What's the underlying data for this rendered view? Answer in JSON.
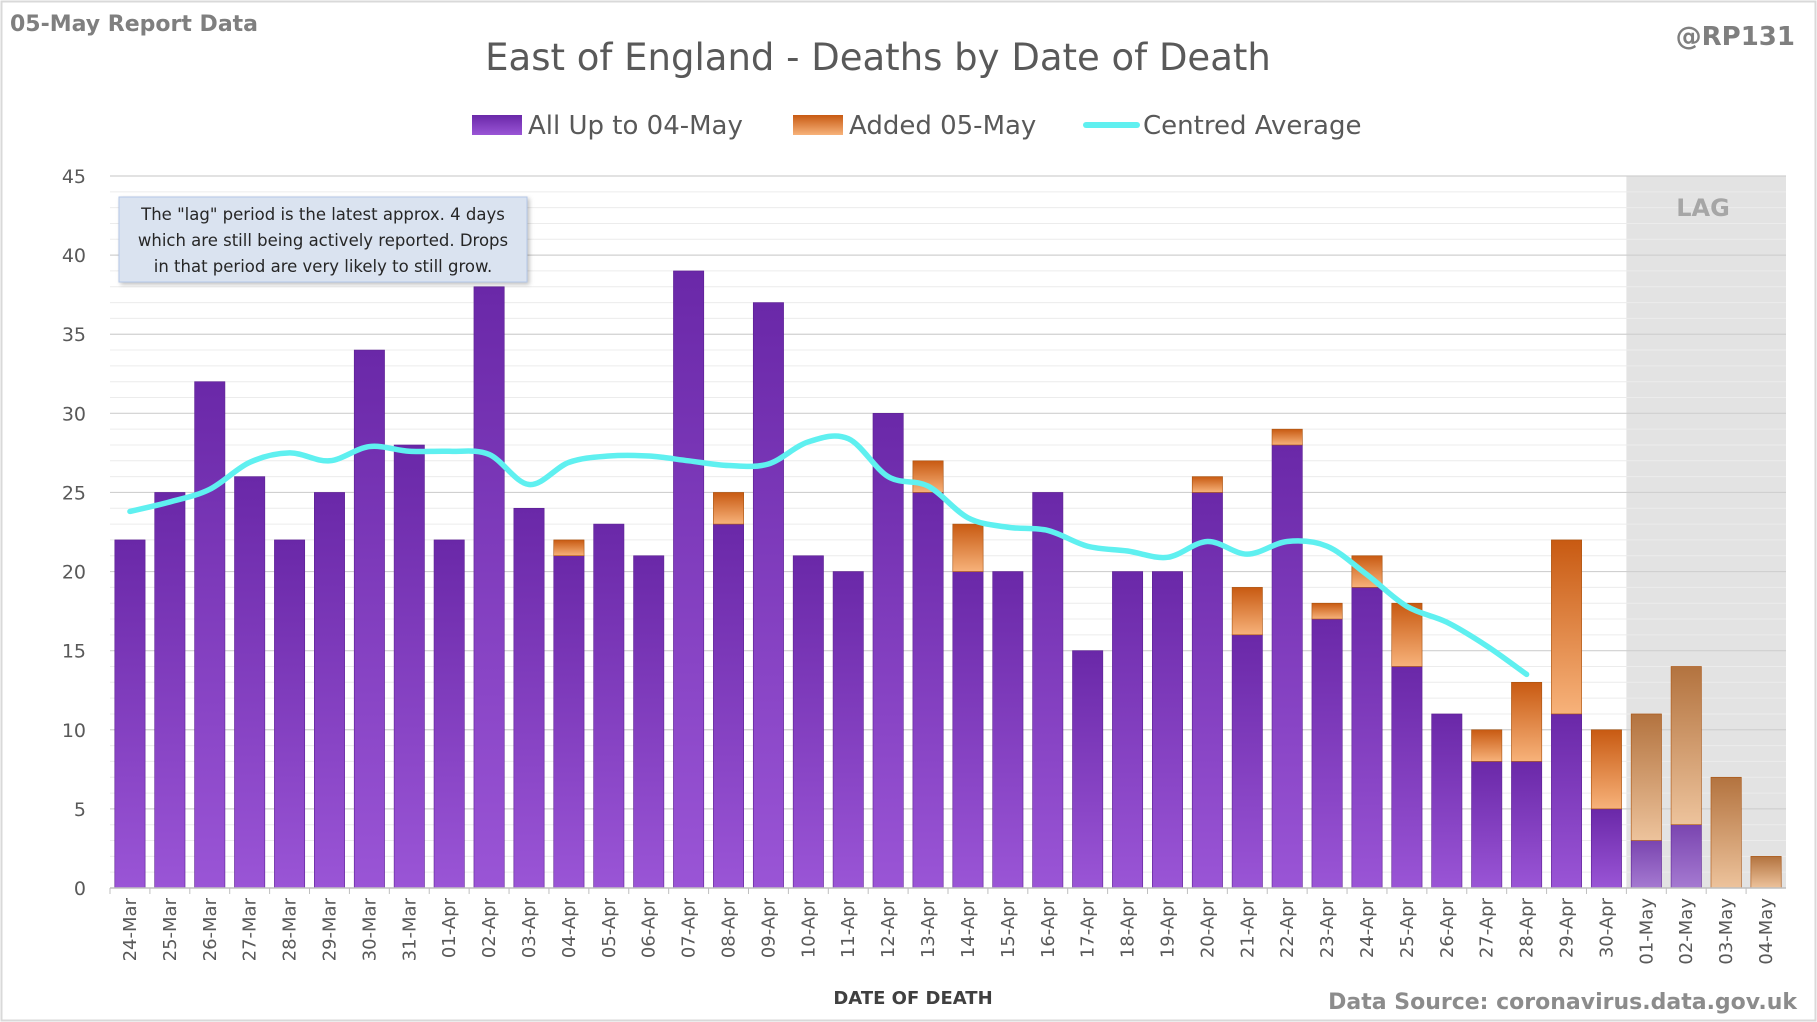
{
  "report_label": "05-May Report Data",
  "handle": "@RP131",
  "source": "Data Source: coronavirus.data.gov.uk",
  "lag_label": "LAG",
  "annotation": [
    "The \"lag\" period is the latest approx. 4 days",
    "which are still being actively reported.  Drops",
    "in that period are very likely to still grow."
  ],
  "colors": {
    "base": "#7a2fbf",
    "added": "#e07a2e",
    "average": "#5ff0f0",
    "lag_shade": "#e3e3e3",
    "grid": "#d9d9d9"
  },
  "chart_data": {
    "type": "bar",
    "stacked": true,
    "title": "East of England - Deaths by Date of Death",
    "xlabel": "DATE OF DEATH",
    "ylabel": "",
    "ylim": [
      0,
      45
    ],
    "yticks": [
      0,
      5,
      10,
      15,
      20,
      25,
      30,
      35,
      40,
      45
    ],
    "grid": true,
    "legend_position": "top-center",
    "categories": [
      "24-Mar",
      "25-Mar",
      "26-Mar",
      "27-Mar",
      "28-Mar",
      "29-Mar",
      "30-Mar",
      "31-Mar",
      "01-Apr",
      "02-Apr",
      "03-Apr",
      "04-Apr",
      "05-Apr",
      "06-Apr",
      "07-Apr",
      "08-Apr",
      "09-Apr",
      "10-Apr",
      "11-Apr",
      "12-Apr",
      "13-Apr",
      "14-Apr",
      "15-Apr",
      "16-Apr",
      "17-Apr",
      "18-Apr",
      "19-Apr",
      "20-Apr",
      "21-Apr",
      "22-Apr",
      "23-Apr",
      "24-Apr",
      "25-Apr",
      "26-Apr",
      "27-Apr",
      "28-Apr",
      "29-Apr",
      "30-Apr",
      "01-May",
      "02-May",
      "03-May",
      "04-May"
    ],
    "lag_categories": [
      "01-May",
      "02-May",
      "03-May",
      "04-May"
    ],
    "series": [
      {
        "name": "All Up to 04-May",
        "kind": "bar",
        "values": [
          22,
          25,
          32,
          26,
          22,
          25,
          34,
          28,
          22,
          38,
          24,
          21,
          23,
          21,
          39,
          23,
          37,
          21,
          20,
          30,
          25,
          20,
          20,
          25,
          15,
          20,
          20,
          25,
          16,
          28,
          17,
          19,
          14,
          11,
          8,
          8,
          11,
          5,
          3,
          4,
          0,
          0
        ]
      },
      {
        "name": "Added 05-May",
        "kind": "bar",
        "values": [
          0,
          0,
          0,
          0,
          0,
          0,
          0,
          0,
          0,
          0,
          0,
          1,
          0,
          0,
          0,
          2,
          0,
          0,
          0,
          0,
          2,
          3,
          0,
          0,
          0,
          0,
          0,
          1,
          3,
          1,
          1,
          2,
          4,
          0,
          2,
          5,
          11,
          5,
          8,
          10,
          7,
          2
        ]
      },
      {
        "name": "Centred Average",
        "kind": "line",
        "values": [
          23.8,
          24.4,
          25.2,
          26.9,
          27.5,
          27.0,
          27.9,
          27.6,
          27.6,
          27.4,
          25.5,
          26.9,
          27.3,
          27.3,
          27.0,
          26.7,
          26.8,
          28.2,
          28.4,
          26.0,
          25.4,
          23.4,
          22.8,
          22.6,
          21.6,
          21.3,
          20.9,
          21.9,
          21.1,
          21.9,
          21.6,
          19.8,
          17.8,
          16.8,
          15.3,
          13.5,
          null,
          null,
          null,
          null,
          null,
          null
        ]
      }
    ]
  }
}
